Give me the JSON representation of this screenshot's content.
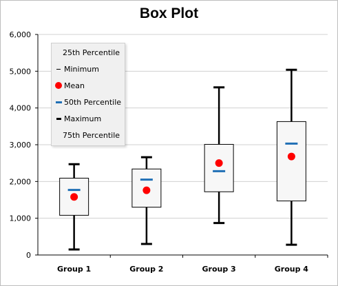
{
  "chart_data": {
    "type": "box",
    "title": "Box Plot",
    "categories": [
      "Group 1",
      "Group 2",
      "Group 3",
      "Group 4"
    ],
    "ylim": [
      0,
      6000
    ],
    "yticks": [
      0,
      1000,
      2000,
      3000,
      4000,
      5000,
      6000
    ],
    "ytick_labels": [
      "0",
      "1,000",
      "2,000",
      "3,000",
      "4,000",
      "5,000",
      "6,000"
    ],
    "grid": true,
    "legend_position": "top-left",
    "series": [
      {
        "name": "Minimum",
        "values": [
          150,
          300,
          870,
          280
        ]
      },
      {
        "name": "25th Percentile",
        "values": [
          1080,
          1300,
          1720,
          1470
        ]
      },
      {
        "name": "50th Percentile",
        "values": [
          1770,
          2050,
          2280,
          3030
        ]
      },
      {
        "name": "Mean",
        "values": [
          1580,
          1760,
          2500,
          2680
        ]
      },
      {
        "name": "75th Percentile",
        "values": [
          2090,
          2340,
          3010,
          3630
        ]
      },
      {
        "name": "Maximum",
        "values": [
          2470,
          2660,
          4560,
          5040
        ]
      }
    ],
    "legend_entries": [
      "25th Percentile",
      "Minimum",
      "Mean",
      "50th Percentile",
      "Maximum",
      "75th Percentile"
    ],
    "colors": {
      "mean": "#ff0000",
      "median": "#1f6fb5",
      "whisker": "#000000",
      "box_fill": "#f7f7f7",
      "box_border": "#000000",
      "grid": "#d0d0d0",
      "legend_bg": "#f0f0f0"
    }
  }
}
